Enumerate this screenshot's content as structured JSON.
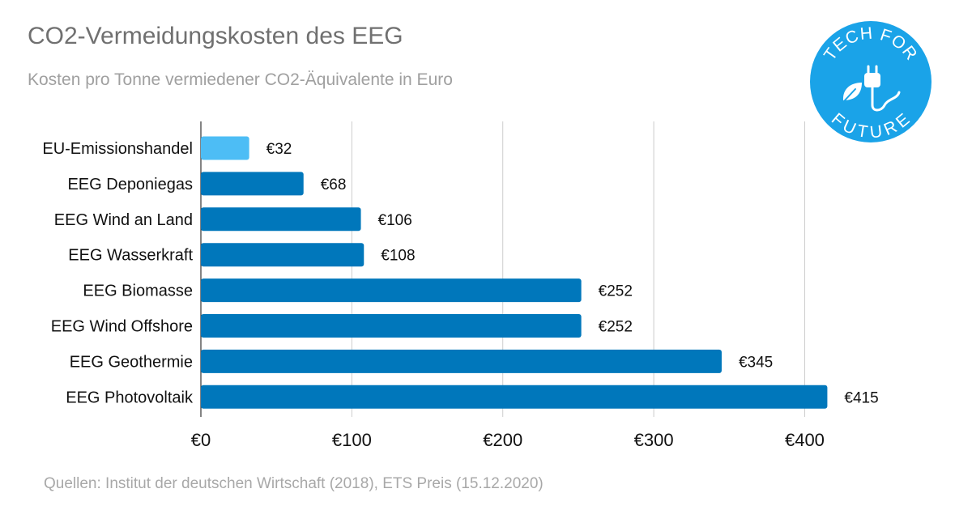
{
  "header": {
    "title": "CO2-Vermeidungskosten des EEG",
    "subtitle": "Kosten pro Tonne vermiedener CO2-Äquivalente in Euro"
  },
  "footer": {
    "source": "Quellen: Institut der deutschen Wirtschaft (2018), ETS Preis (15.12.2020)"
  },
  "logo": {
    "text_top": "TECH FOR",
    "text_bottom": "FUTURE",
    "icon": "plug-leaf-icon",
    "color": "#1aa3e8"
  },
  "colors": {
    "highlight": "#4dbdf5",
    "bar": "#0077bb",
    "grid": "#cccccc",
    "axis": "#333333"
  },
  "chart_data": {
    "type": "bar",
    "orientation": "horizontal",
    "categories": [
      "EU-Emissionshandel",
      "EEG Deponiegas",
      "EEG Wind an Land",
      "EEG Wasserkraft",
      "EEG Biomasse",
      "EEG Wind Offshore",
      "EEG Geothermie",
      "EEG Photovoltaik"
    ],
    "values": [
      32,
      68,
      106,
      108,
      252,
      252,
      345,
      415
    ],
    "data_labels": [
      "€32",
      "€68",
      "€106",
      "€108",
      "€252",
      "€252",
      "€345",
      "€415"
    ],
    "highlighted_category": "EU-Emissionshandel",
    "x_ticks": [
      0,
      100,
      200,
      300,
      400
    ],
    "x_tick_labels": [
      "€0",
      "€100",
      "€200",
      "€300",
      "€400"
    ],
    "xlim": [
      0,
      440
    ],
    "grid": true
  }
}
